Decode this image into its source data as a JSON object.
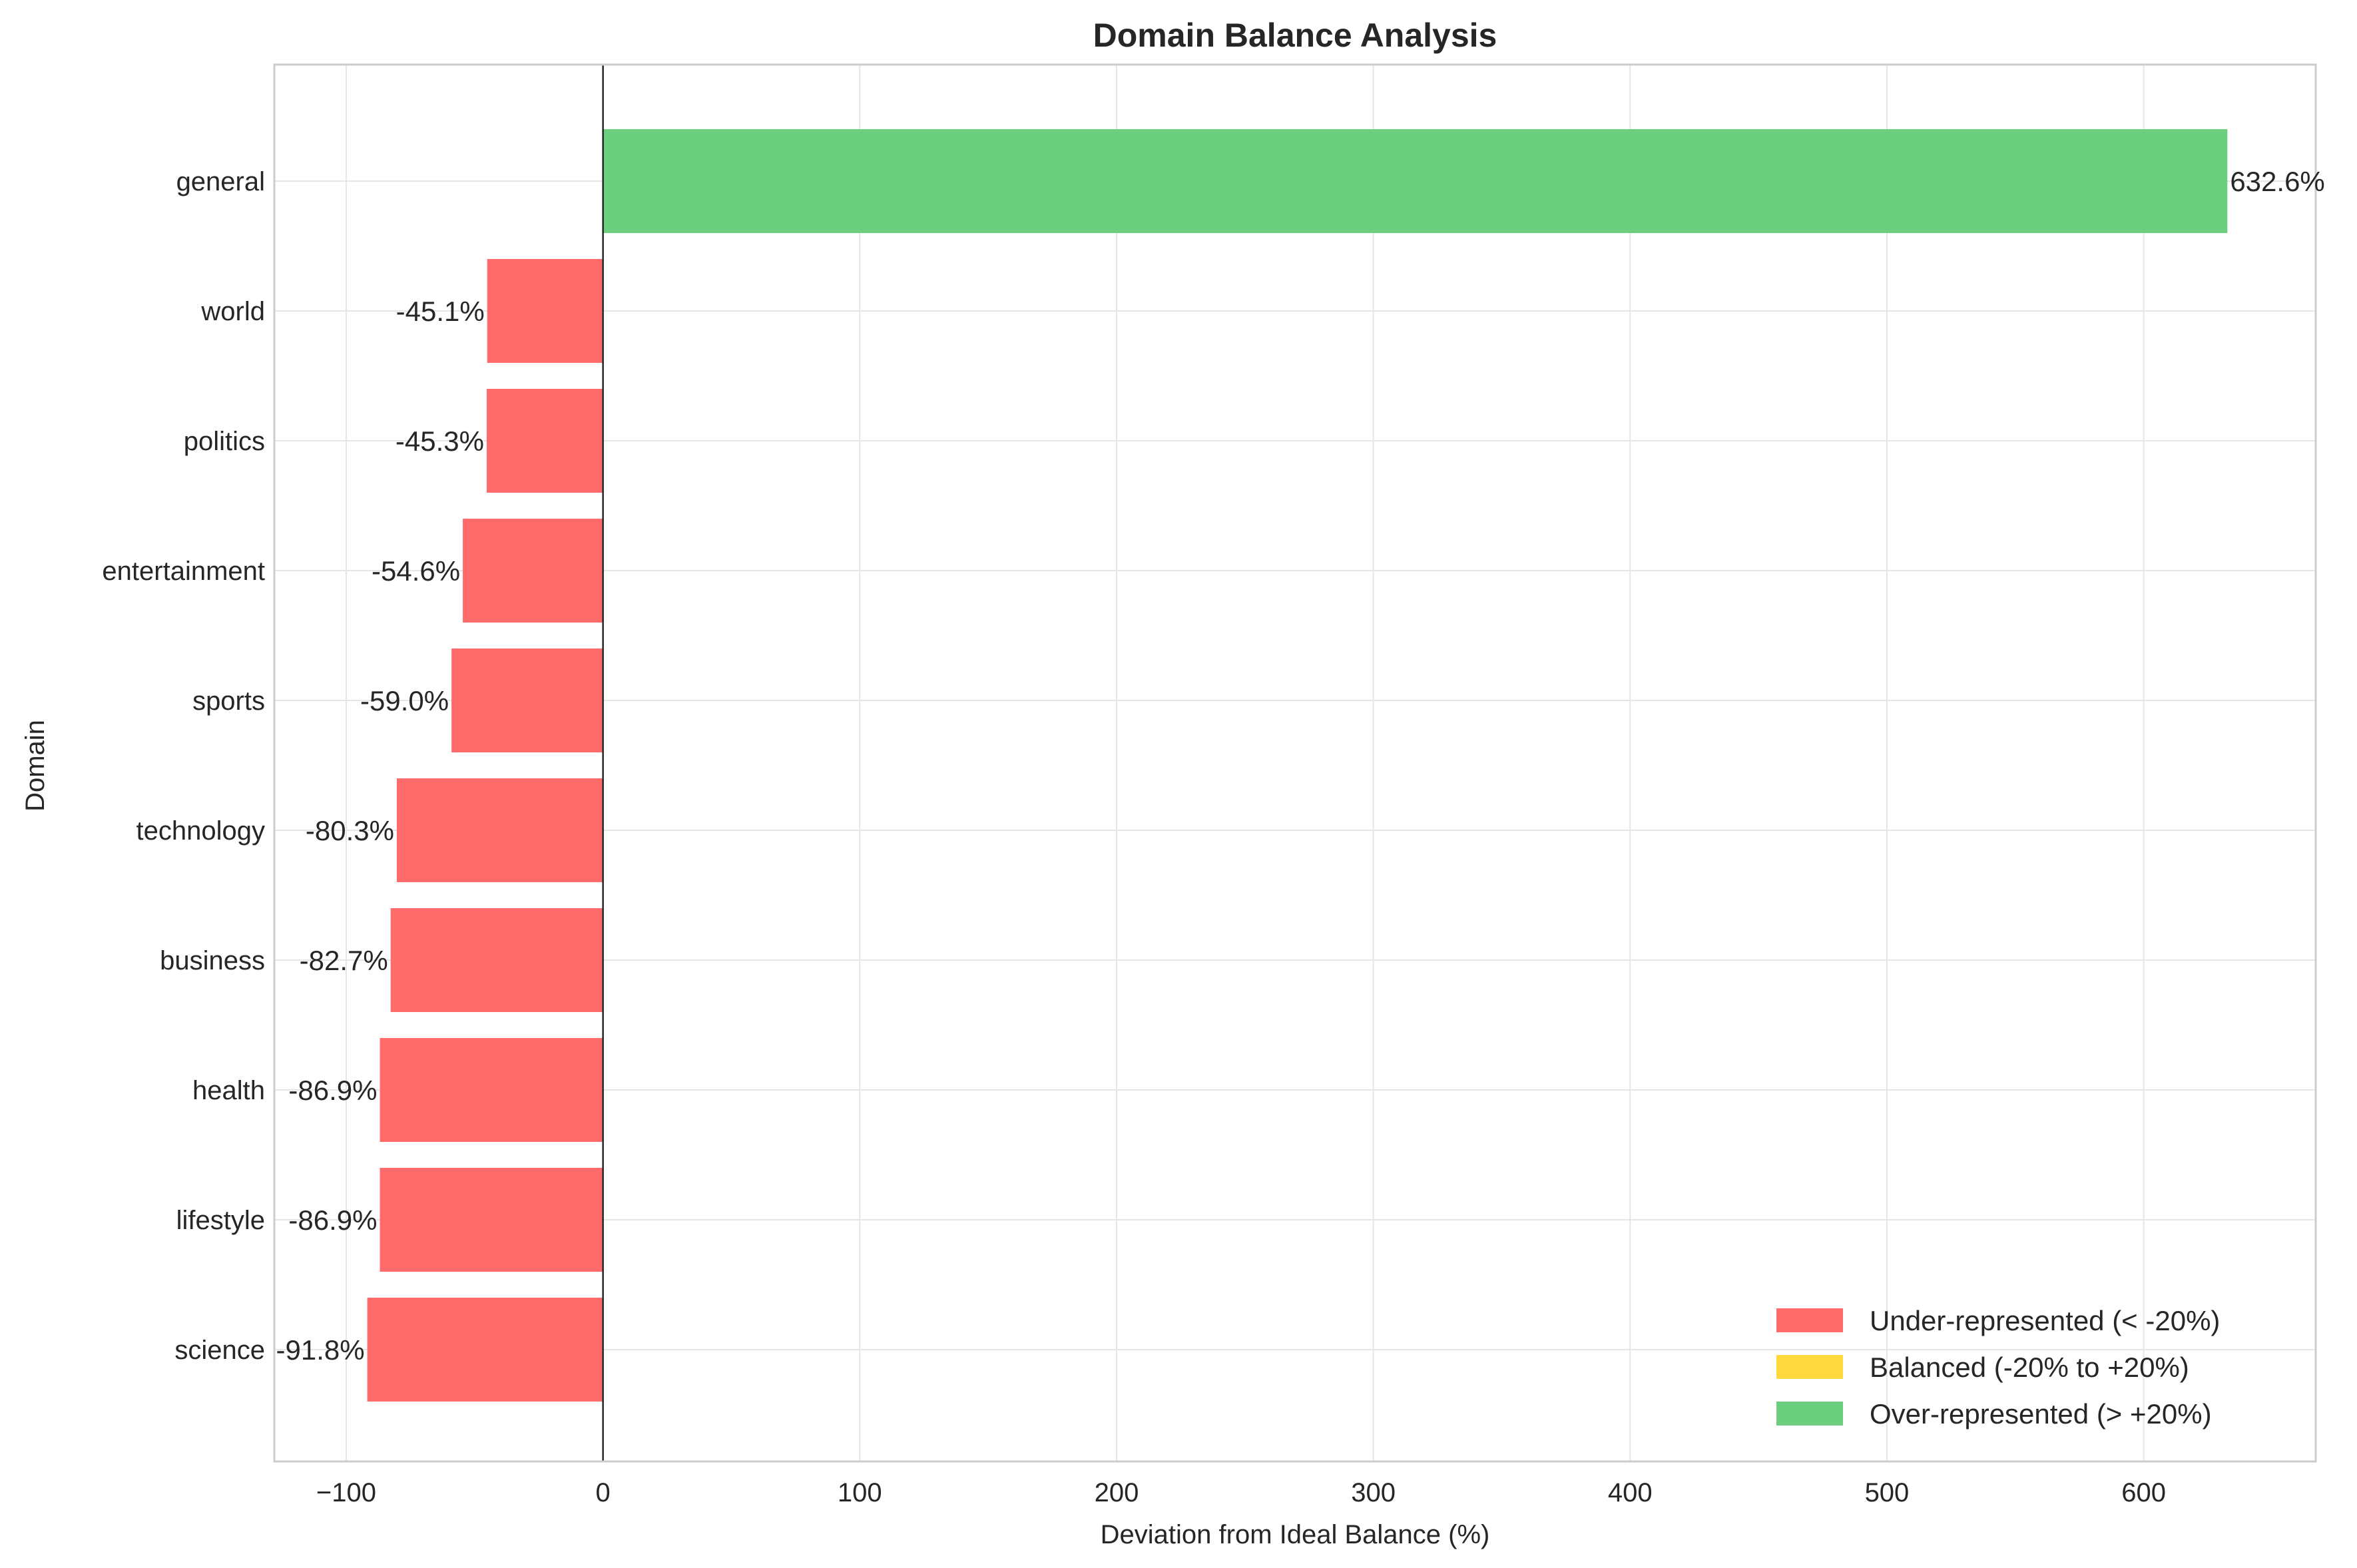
{
  "chart_data": {
    "type": "bar",
    "orientation": "horizontal",
    "title": "Domain Balance Analysis",
    "xlabel": "Deviation from Ideal Balance (%)",
    "ylabel": "Domain",
    "categories": [
      "general",
      "world",
      "politics",
      "entertainment",
      "sports",
      "technology",
      "business",
      "health",
      "lifestyle",
      "science"
    ],
    "values": [
      632.6,
      -45.1,
      -45.3,
      -54.6,
      -59.0,
      -80.3,
      -82.7,
      -86.9,
      -86.9,
      -91.8
    ],
    "data_labels": [
      "632.6%",
      "-45.1%",
      "-45.3%",
      "-54.6%",
      "-59.0%",
      "-80.3%",
      "-82.7%",
      "-86.9%",
      "-86.9%",
      "-91.8%"
    ],
    "xlim": [
      -128,
      667
    ],
    "xticks": [
      -100,
      0,
      100,
      200,
      300,
      400,
      500,
      600
    ],
    "xtick_labels": [
      "−100",
      "0",
      "100",
      "200",
      "300",
      "400",
      "500",
      "600"
    ],
    "grid": true,
    "legend_position": "lower-right",
    "legend": [
      {
        "label": "Under-represented (< -20%)",
        "color": "#ff6b6b"
      },
      {
        "label": "Balanced (-20% to +20%)",
        "color": "#ffd93d"
      },
      {
        "label": "Over-represented (> +20%)",
        "color": "#6bcf7f"
      }
    ],
    "colors": {
      "under": "#ff6b6b",
      "balanced": "#ffd93d",
      "over": "#6bcf7f"
    }
  }
}
